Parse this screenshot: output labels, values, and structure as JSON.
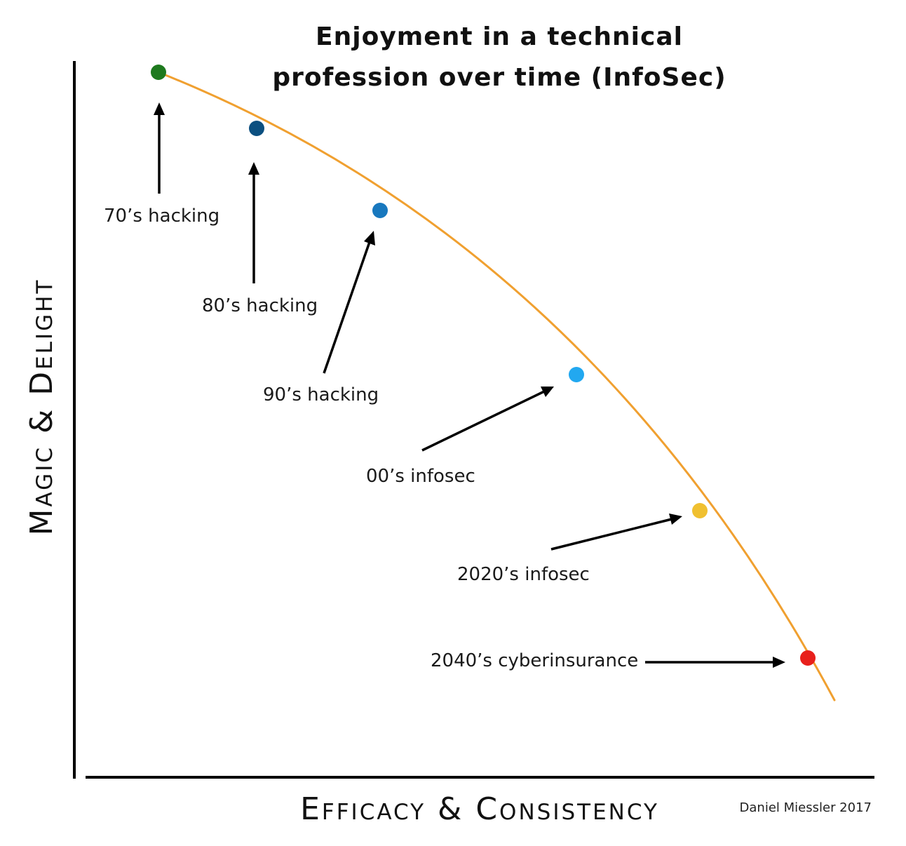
{
  "chart_data": {
    "type": "line",
    "title_line1": "Enjoyment in a technical",
    "title_line2": "profession over time (InfoSec)",
    "xlabel": "Efficacy & Consistency",
    "ylabel": "Magic & Delight",
    "credit": "Daniel Miessler 2017",
    "line_color": "#F0A030",
    "points": [
      {
        "label": "70’s hacking",
        "color": "#1E7A1E"
      },
      {
        "label": "80’s hacking",
        "color": "#0B4F80"
      },
      {
        "label": "90’s hacking",
        "color": "#1878BE"
      },
      {
        "label": "00’s infosec",
        "color": "#22A8F0"
      },
      {
        "label": "2020’s infosec",
        "color": "#F0C030"
      },
      {
        "label": "2040’s cyberinsurance",
        "color": "#E8201C"
      }
    ]
  }
}
